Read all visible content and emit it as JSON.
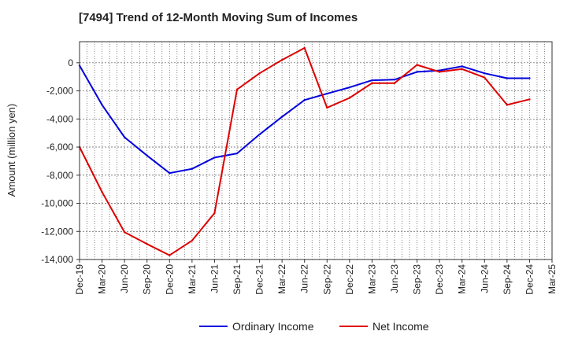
{
  "chart_data": {
    "type": "line",
    "title": "[7494]  Trend of 12-Month Moving Sum of Incomes",
    "xlabel": "",
    "ylabel": "Amount (million yen)",
    "ylim": [
      -14000,
      1500
    ],
    "yticks": [
      0,
      -2000,
      -4000,
      -6000,
      -8000,
      -10000,
      -12000,
      -14000
    ],
    "ytick_labels": [
      "0",
      "-2,000",
      "-4,000",
      "-6,000",
      "-8,000",
      "-10,000",
      "-12,000",
      "-14,000"
    ],
    "categories": [
      "Dec-19",
      "Mar-20",
      "Jun-20",
      "Sep-20",
      "Dec-20",
      "Mar-21",
      "Jun-21",
      "Sep-21",
      "Dec-21",
      "Mar-22",
      "Jun-22",
      "Sep-22",
      "Dec-22",
      "Mar-23",
      "Jun-23",
      "Sep-23",
      "Dec-23",
      "Mar-24",
      "Jun-24",
      "Sep-24",
      "Dec-24",
      "Mar-25"
    ],
    "grid": true,
    "legend_position": "bottom-center",
    "series": [
      {
        "name": "Ordinary Income",
        "color": "#0000dd",
        "values": [
          -200,
          -3000,
          -5300,
          -6600,
          -7850,
          -7550,
          -6750,
          -6450,
          -5100,
          -3850,
          -2650,
          -2200,
          -1750,
          -1250,
          -1200,
          -650,
          -550,
          -250,
          -750,
          -1100,
          -1100,
          null
        ]
      },
      {
        "name": "Net Income",
        "color": "#dd0000",
        "values": [
          -6000,
          -9200,
          -12050,
          -12900,
          -13700,
          -12650,
          -10700,
          -1900,
          -750,
          200,
          1050,
          -3200,
          -2500,
          -1450,
          -1450,
          -150,
          -650,
          -450,
          -1050,
          -3000,
          -2600,
          null
        ]
      }
    ]
  }
}
